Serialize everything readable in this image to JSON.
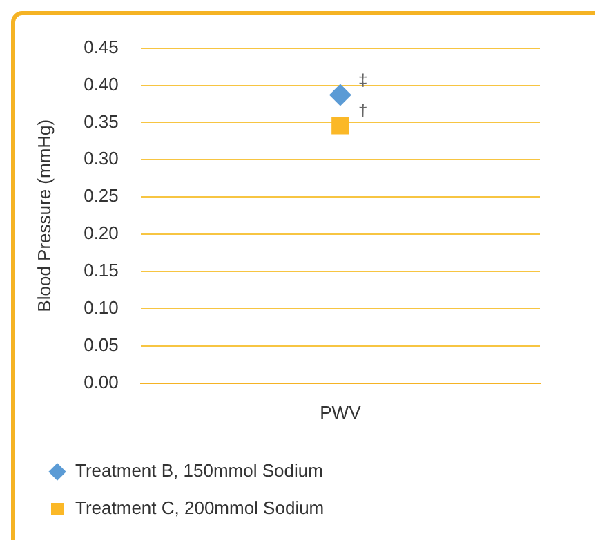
{
  "chart_data": {
    "type": "scatter",
    "ylabel": "Blood Pressure (mmHg)",
    "categories": [
      "PWV"
    ],
    "series": [
      {
        "name": "Treatment B, 150mmol Sodium",
        "color": "#5b9bd5",
        "values": [
          0.387
        ],
        "marker": "diamond"
      },
      {
        "name": "Treatment C, 200mmol Sodium",
        "color": "#fbb827",
        "values": [
          0.346
        ],
        "marker": "square"
      }
    ],
    "annotations": [
      {
        "text": "‡",
        "x": "PWV",
        "y": 0.387
      },
      {
        "text": "†",
        "x": "PWV",
        "y": 0.346
      }
    ],
    "ylim": [
      0,
      0.45
    ],
    "yticks": [
      {
        "value": 0,
        "label": "0.00"
      },
      0.05,
      {
        "value": 0.1,
        "label": "0.10"
      },
      0.15,
      {
        "value": 0.2,
        "label": "0.20"
      },
      0.25,
      {
        "value": 0.3,
        "label": "0.30"
      },
      0.35,
      {
        "value": 0.4,
        "label": "0.40"
      },
      0.45
    ],
    "grid": "y",
    "legend": "bottom"
  }
}
